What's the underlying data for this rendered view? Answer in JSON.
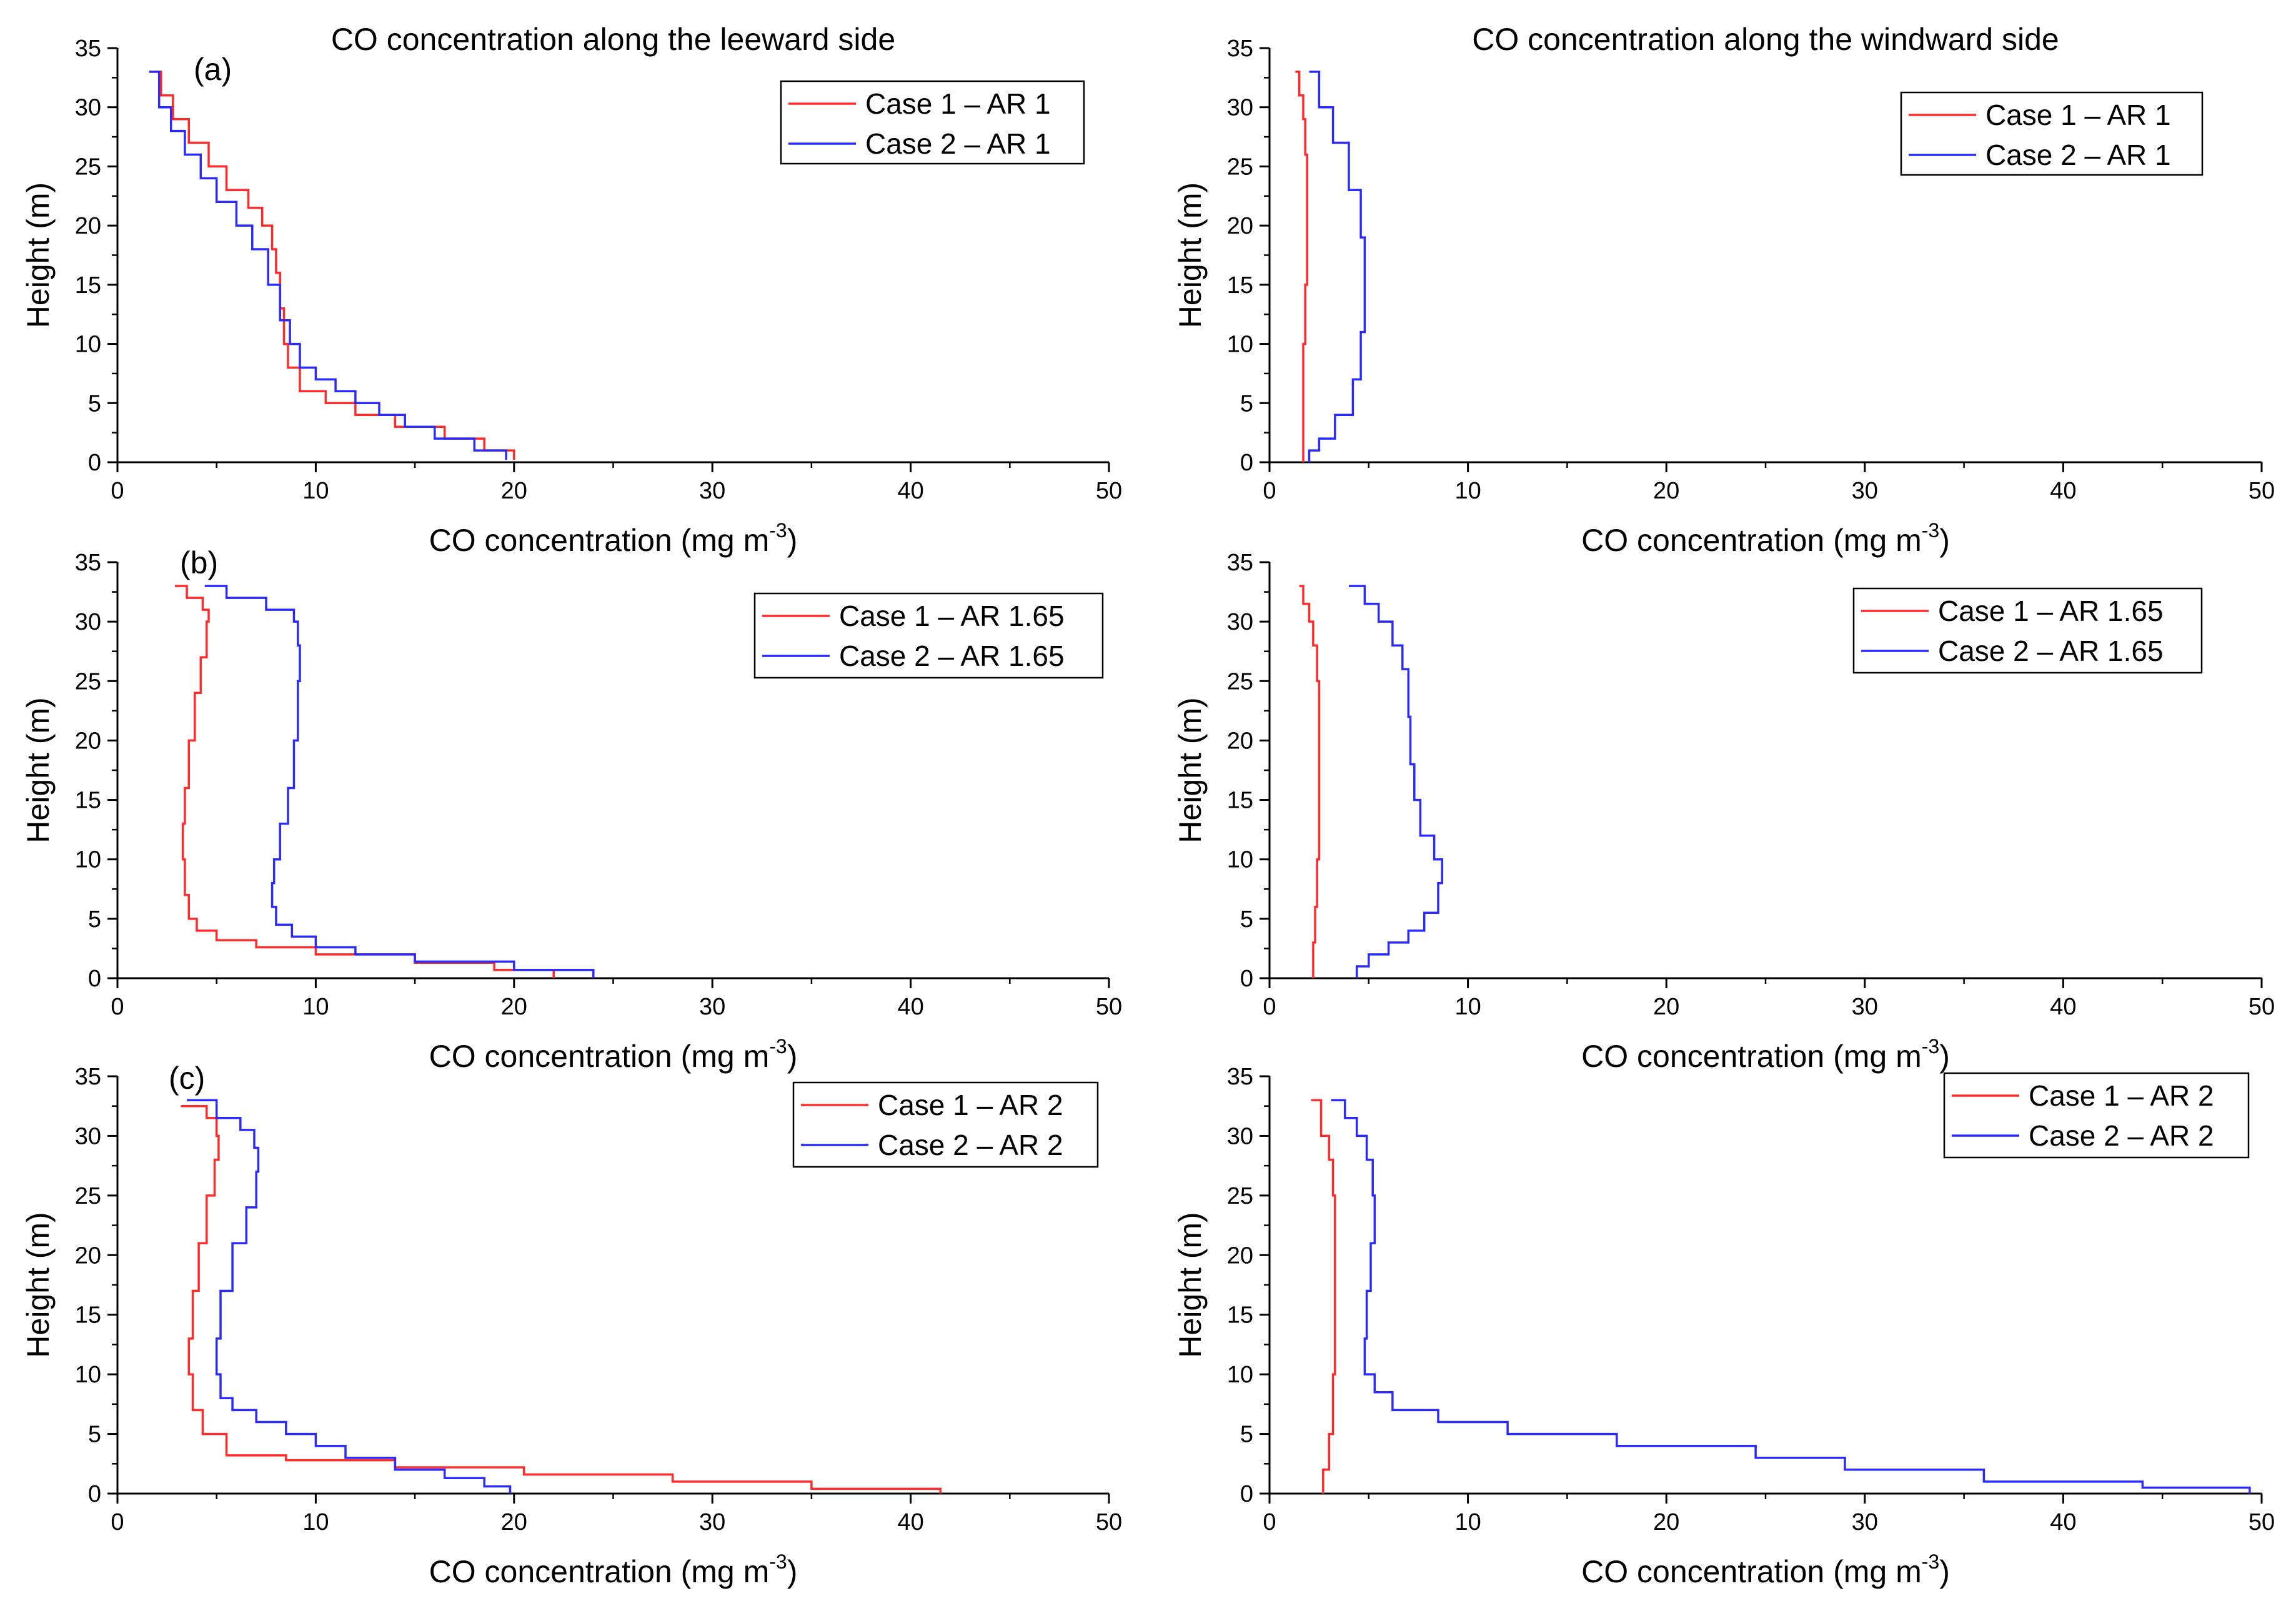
{
  "chart_data": [
    {
      "type": "line",
      "panel_label": "(a)",
      "title": "CO concentration along the leeward side",
      "xlabel": "CO concentration (mg m-3)",
      "ylabel": "Height (m)",
      "xlim": [
        0,
        50
      ],
      "ylim": [
        0,
        35
      ],
      "xticks": [
        0,
        10,
        20,
        30,
        40,
        50
      ],
      "yticks": [
        0,
        5,
        10,
        15,
        20,
        25,
        30,
        35
      ],
      "grid": false,
      "legend_position": "top-right",
      "series": [
        {
          "name": "Case 1 – AR 1",
          "color": "#ff2a2a",
          "x": [
            20.0,
            18.5,
            16.5,
            14.0,
            12.0,
            10.5,
            9.2,
            8.6,
            8.4,
            8.2,
            8.0,
            7.8,
            7.3,
            6.6,
            5.5,
            4.6,
            3.6,
            2.8,
            2.2,
            1.6
          ],
          "y": [
            0.2,
            1,
            2,
            3,
            4,
            5,
            6,
            8,
            10,
            13,
            16,
            18,
            20,
            21.5,
            23,
            25,
            27,
            29,
            31,
            33
          ]
        },
        {
          "name": "Case 2 – AR 1",
          "color": "#2a2aff",
          "x": [
            19.6,
            18.0,
            16.0,
            14.5,
            13.2,
            12.0,
            11.0,
            10.0,
            9.2,
            8.7,
            8.2,
            7.6,
            6.8,
            6.0,
            5.0,
            4.2,
            3.4,
            2.7,
            2.1,
            1.6
          ],
          "y": [
            0.2,
            1,
            2,
            3,
            4,
            5,
            6,
            7,
            8,
            10,
            12,
            15,
            18,
            20,
            22,
            24,
            26,
            28,
            30,
            33
          ]
        }
      ]
    },
    {
      "type": "line",
      "title": "CO concentration along the windward side",
      "xlabel": "CO concentration (mg m-3)",
      "ylabel": "Height (m)",
      "xlim": [
        0,
        50
      ],
      "ylim": [
        0,
        35
      ],
      "xticks": [
        0,
        10,
        20,
        30,
        40,
        50
      ],
      "yticks": [
        0,
        5,
        10,
        15,
        20,
        25,
        30,
        35
      ],
      "grid": false,
      "legend_position": "top-right",
      "series": [
        {
          "name": "Case 1 – AR 1",
          "color": "#ff2a2a",
          "x": [
            1.7,
            1.7,
            1.8,
            1.9,
            1.9,
            1.9,
            1.8,
            1.7,
            1.5,
            1.3
          ],
          "y": [
            0,
            5,
            10,
            15,
            20,
            23,
            26,
            29,
            31,
            33
          ]
        },
        {
          "name": "Case 2 – AR 1",
          "color": "#2a2aff",
          "x": [
            2.0,
            2.5,
            3.3,
            4.2,
            4.6,
            4.8,
            4.8,
            4.6,
            4.0,
            3.2,
            2.5,
            2.0
          ],
          "y": [
            0,
            1,
            2,
            4,
            7,
            11,
            15,
            19,
            23,
            27,
            30,
            33
          ]
        }
      ]
    },
    {
      "type": "line",
      "panel_label": "(b)",
      "xlabel": "CO concentration (mg m-3)",
      "ylabel": "Height (m)",
      "xlim": [
        0,
        50
      ],
      "ylim": [
        0,
        35
      ],
      "xticks": [
        0,
        10,
        20,
        30,
        40,
        50
      ],
      "yticks": [
        0,
        5,
        10,
        15,
        20,
        25,
        30,
        35
      ],
      "grid": false,
      "legend_position": "top-right",
      "series": [
        {
          "name": "Case 1 – AR 1.65",
          "color": "#ff2a2a",
          "x": [
            22.0,
            19.0,
            15.0,
            10.0,
            7.0,
            5.0,
            4.0,
            3.6,
            3.4,
            3.3,
            3.4,
            3.6,
            3.9,
            4.2,
            4.5,
            4.6,
            4.3,
            3.5,
            2.9
          ],
          "y": [
            0,
            0.7,
            1.3,
            2,
            2.6,
            3.2,
            4,
            5,
            7,
            10,
            13,
            16,
            20,
            24,
            27,
            30,
            31,
            32,
            33
          ]
        },
        {
          "name": "Case 2 – AR 1.65",
          "color": "#2a2aff",
          "x": [
            24.0,
            20.0,
            15.0,
            12.0,
            10.0,
            8.8,
            8.0,
            7.8,
            7.9,
            8.2,
            8.6,
            8.9,
            9.1,
            9.2,
            9.1,
            8.9,
            7.5,
            5.5,
            4.4
          ],
          "y": [
            0,
            0.7,
            1.4,
            2,
            2.6,
            3.5,
            4.5,
            6,
            8,
            10,
            13,
            16,
            20,
            25,
            28,
            30,
            31,
            32,
            33
          ]
        }
      ]
    },
    {
      "type": "line",
      "xlabel": "CO concentration (mg m-3)",
      "ylabel": "Height (m)",
      "xlim": [
        0,
        50
      ],
      "ylim": [
        0,
        35
      ],
      "xticks": [
        0,
        10,
        20,
        30,
        40,
        50
      ],
      "yticks": [
        0,
        5,
        10,
        15,
        20,
        25,
        30,
        35
      ],
      "grid": false,
      "legend_position": "top-right",
      "series": [
        {
          "name": "Case 1 – AR 1.65",
          "color": "#ff2a2a",
          "x": [
            2.2,
            2.3,
            2.4,
            2.5,
            2.5,
            2.5,
            2.4,
            2.2,
            2.0,
            1.7,
            1.5
          ],
          "y": [
            0,
            3,
            6,
            10,
            15,
            20,
            25,
            28,
            30,
            31.5,
            33
          ]
        },
        {
          "name": "Case 2 – AR 1.65",
          "color": "#2a2aff",
          "x": [
            4.4,
            5.0,
            6.0,
            7.0,
            7.8,
            8.5,
            8.7,
            8.3,
            7.6,
            7.3,
            7.1,
            7.0,
            6.7,
            6.2,
            5.5,
            4.8,
            4.0
          ],
          "y": [
            0,
            1,
            2,
            3,
            4,
            5.5,
            8,
            10,
            12,
            15,
            18,
            22,
            26,
            28,
            30,
            31.5,
            33
          ]
        }
      ]
    },
    {
      "type": "line",
      "panel_label": "(c)",
      "xlabel": "CO concentration (mg m-3)",
      "ylabel": "Height (m)",
      "xlim": [
        0,
        50
      ],
      "ylim": [
        0,
        35
      ],
      "xticks": [
        0,
        10,
        20,
        30,
        40,
        50
      ],
      "yticks": [
        0,
        5,
        10,
        15,
        20,
        25,
        30,
        35
      ],
      "grid": false,
      "legend_position": "top-right",
      "series": [
        {
          "name": "Case 1 – AR 2",
          "color": "#ff2a2a",
          "x": [
            41.5,
            35.0,
            28.0,
            20.5,
            14.0,
            8.5,
            5.5,
            4.3,
            3.8,
            3.6,
            3.8,
            4.1,
            4.5,
            4.9,
            5.1,
            5.0,
            4.5,
            3.2
          ],
          "y": [
            0,
            0.4,
            1,
            1.6,
            2.2,
            2.8,
            3.2,
            5,
            7,
            10,
            13,
            17,
            21,
            25,
            28,
            30,
            31.5,
            32.5
          ]
        },
        {
          "name": "Case 2 – AR 2",
          "color": "#2a2aff",
          "x": [
            19.8,
            18.5,
            16.5,
            14.0,
            11.5,
            10.0,
            8.5,
            7.0,
            5.8,
            5.2,
            5.0,
            5.2,
            5.8,
            6.5,
            7.0,
            7.1,
            6.9,
            6.2,
            5.0,
            3.5
          ],
          "y": [
            0,
            0.6,
            1.3,
            2,
            3,
            4,
            5,
            6,
            7,
            8,
            10,
            13,
            17,
            21,
            24,
            27,
            29,
            30.5,
            31.5,
            33
          ]
        }
      ]
    },
    {
      "type": "line",
      "xlabel": "CO concentration (mg m-3)",
      "ylabel": "Height (m)",
      "xlim": [
        0,
        50
      ],
      "ylim": [
        0,
        35
      ],
      "xticks": [
        0,
        10,
        20,
        30,
        40,
        50
      ],
      "yticks": [
        0,
        5,
        10,
        15,
        20,
        25,
        30,
        35
      ],
      "grid": false,
      "legend_position": "top-right",
      "series": [
        {
          "name": "Case 1 – AR 2",
          "color": "#ff2a2a",
          "x": [
            2.7,
            3.0,
            3.2,
            3.3,
            3.3,
            3.3,
            3.2,
            3.0,
            2.6,
            2.1
          ],
          "y": [
            0,
            2,
            5,
            10,
            15,
            20,
            25,
            28,
            30,
            33
          ]
        },
        {
          "name": "Case 2 – AR 2",
          "color": "#2a2aff",
          "x": [
            49.4,
            44.0,
            36.0,
            29.0,
            24.5,
            17.5,
            12.0,
            8.5,
            6.2,
            5.3,
            4.8,
            4.9,
            5.1,
            5.3,
            5.2,
            4.9,
            4.4,
            3.8,
            3.1
          ],
          "y": [
            0,
            0.5,
            1,
            2,
            3,
            4,
            5,
            6,
            7,
            8.5,
            10,
            13,
            17,
            21,
            25,
            28,
            30,
            31.5,
            33
          ]
        }
      ]
    }
  ]
}
